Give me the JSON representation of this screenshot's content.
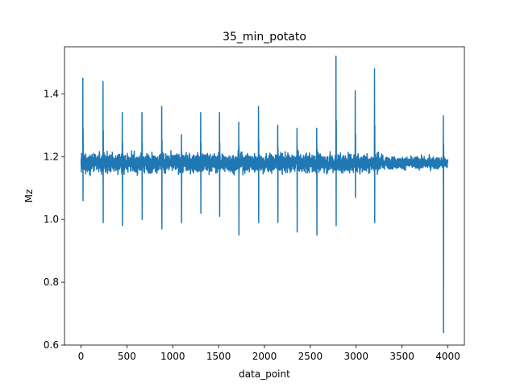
{
  "chart_data": {
    "type": "line",
    "title": "35_min_potato",
    "xlabel": "data_point",
    "ylabel": "Mz",
    "xlim": [
      -180,
      4180
    ],
    "ylim": [
      0.6,
      1.55
    ],
    "x_ticks": [
      0,
      500,
      1000,
      1500,
      2000,
      2500,
      3000,
      3500,
      4000
    ],
    "x_tick_labels": [
      "0",
      "500",
      "1000",
      "1500",
      "2000",
      "2500",
      "3000",
      "3500",
      "4000"
    ],
    "y_ticks": [
      0.6,
      0.8,
      1.0,
      1.2,
      1.4
    ],
    "y_tick_labels": [
      "0.6",
      "0.8",
      "1.0",
      "1.2",
      "1.4"
    ],
    "grid": false,
    "series": [
      {
        "color": "#1f77b4",
        "baseline": 1.18,
        "noise_amplitude": 0.035,
        "n_points": 4000,
        "spikes": [
          {
            "x": 20,
            "max": 1.45,
            "min": 1.06
          },
          {
            "x": 240,
            "max": 1.44,
            "min": 0.99
          },
          {
            "x": 450,
            "max": 1.34,
            "min": 0.98
          },
          {
            "x": 665,
            "max": 1.34,
            "min": 1.0
          },
          {
            "x": 880,
            "max": 1.36,
            "min": 0.97
          },
          {
            "x": 1095,
            "max": 1.27,
            "min": 0.99
          },
          {
            "x": 1305,
            "max": 1.34,
            "min": 1.02
          },
          {
            "x": 1510,
            "max": 1.34,
            "min": 1.01
          },
          {
            "x": 1720,
            "max": 1.31,
            "min": 0.95
          },
          {
            "x": 1935,
            "max": 1.36,
            "min": 0.99
          },
          {
            "x": 2145,
            "max": 1.3,
            "min": 0.99
          },
          {
            "x": 2355,
            "max": 1.29,
            "min": 0.96
          },
          {
            "x": 2570,
            "max": 1.29,
            "min": 0.95
          },
          {
            "x": 2780,
            "max": 1.52,
            "min": 0.98
          },
          {
            "x": 2990,
            "max": 1.41,
            "min": 1.07
          },
          {
            "x": 3200,
            "max": 1.48,
            "min": 0.99
          },
          {
            "x": 3950,
            "max": 1.33,
            "min": 0.64
          }
        ]
      }
    ]
  }
}
